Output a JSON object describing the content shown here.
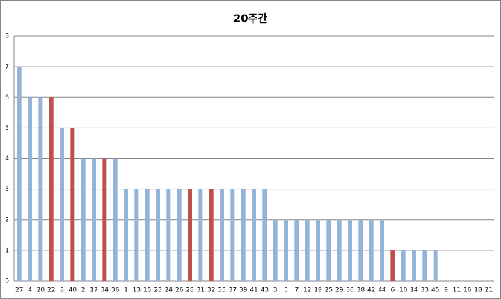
{
  "chart_data": {
    "type": "bar",
    "title": "20주간",
    "categories": [
      "27",
      "4",
      "20",
      "22",
      "8",
      "40",
      "2",
      "17",
      "34",
      "36",
      "1",
      "13",
      "15",
      "23",
      "24",
      "26",
      "28",
      "31",
      "32",
      "35",
      "37",
      "39",
      "41",
      "43",
      "3",
      "5",
      "7",
      "12",
      "19",
      "25",
      "29",
      "30",
      "38",
      "42",
      "44",
      "6",
      "10",
      "14",
      "33",
      "45",
      "9",
      "11",
      "16",
      "18",
      "21"
    ],
    "values": [
      7,
      6,
      6,
      6,
      5,
      5,
      4,
      4,
      4,
      4,
      3,
      3,
      3,
      3,
      3,
      3,
      3,
      3,
      3,
      3,
      3,
      3,
      3,
      3,
      2,
      2,
      2,
      2,
      2,
      2,
      2,
      2,
      2,
      2,
      2,
      1,
      1,
      1,
      1,
      1,
      0,
      0,
      0,
      0,
      0
    ],
    "colors": [
      "#95b3d7",
      "#95b3d7",
      "#95b3d7",
      "#c0504d",
      "#95b3d7",
      "#c0504d",
      "#95b3d7",
      "#95b3d7",
      "#c0504d",
      "#95b3d7",
      "#95b3d7",
      "#95b3d7",
      "#95b3d7",
      "#95b3d7",
      "#95b3d7",
      "#95b3d7",
      "#c0504d",
      "#95b3d7",
      "#c0504d",
      "#95b3d7",
      "#95b3d7",
      "#95b3d7",
      "#95b3d7",
      "#95b3d7",
      "#95b3d7",
      "#95b3d7",
      "#95b3d7",
      "#95b3d7",
      "#95b3d7",
      "#95b3d7",
      "#95b3d7",
      "#95b3d7",
      "#95b3d7",
      "#95b3d7",
      "#95b3d7",
      "#c0504d",
      "#95b3d7",
      "#95b3d7",
      "#95b3d7",
      "#95b3d7",
      "#95b3d7",
      "#95b3d7",
      "#95b3d7",
      "#95b3d7",
      "#95b3d7"
    ],
    "ylim": [
      0,
      8
    ],
    "yticks": [
      0,
      1,
      2,
      3,
      4,
      5,
      6,
      7,
      8
    ],
    "grid": true
  }
}
